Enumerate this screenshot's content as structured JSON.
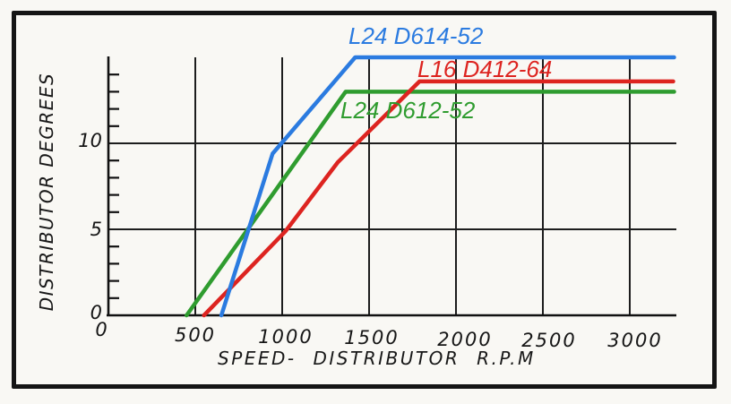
{
  "figure": {
    "background": "#f9f8f4",
    "frame_color": "#151515",
    "grid_color": "#1d1d1d"
  },
  "chart_data": {
    "type": "line",
    "title": "",
    "xlabel": "SPEED- DISTRIBUTOR R.P.M",
    "ylabel": "DISTRIBUTOR DEGREES",
    "x_unit": "rpm",
    "y_unit": "distributor degrees",
    "xlim": [
      0,
      3250
    ],
    "ylim": [
      0,
      15
    ],
    "x_ticks": [
      0,
      500,
      1000,
      1500,
      2000,
      2500,
      3000
    ],
    "y_ticks": [
      0,
      5,
      10
    ],
    "y_minor_ticks": [
      1,
      2,
      3,
      4,
      6,
      7,
      8,
      9,
      11,
      12,
      13,
      14
    ],
    "grid": {
      "vertical_rpm": [
        500,
        1000,
        1500,
        2000,
        2500,
        3000
      ],
      "horizontal_deg": [
        5,
        10
      ]
    },
    "legend_position": "inline-labels",
    "series": [
      {
        "name": "L24 D612-52",
        "color": "#2f9c2f",
        "points": [
          [
            450,
            0
          ],
          [
            1365,
            13
          ],
          [
            3255,
            13
          ]
        ]
      },
      {
        "name": "L16 D412-64",
        "color": "#dd2420",
        "points": [
          [
            550,
            0
          ],
          [
            1020,
            4.9
          ],
          [
            1320,
            8.9
          ],
          [
            1790,
            13.6
          ],
          [
            3250,
            13.6
          ]
        ]
      },
      {
        "name": "L24 D614-52",
        "color": "#2b7be0",
        "points": [
          [
            650,
            0
          ],
          [
            945,
            9.4
          ],
          [
            1420,
            15
          ],
          [
            3255,
            15
          ]
        ]
      }
    ]
  }
}
